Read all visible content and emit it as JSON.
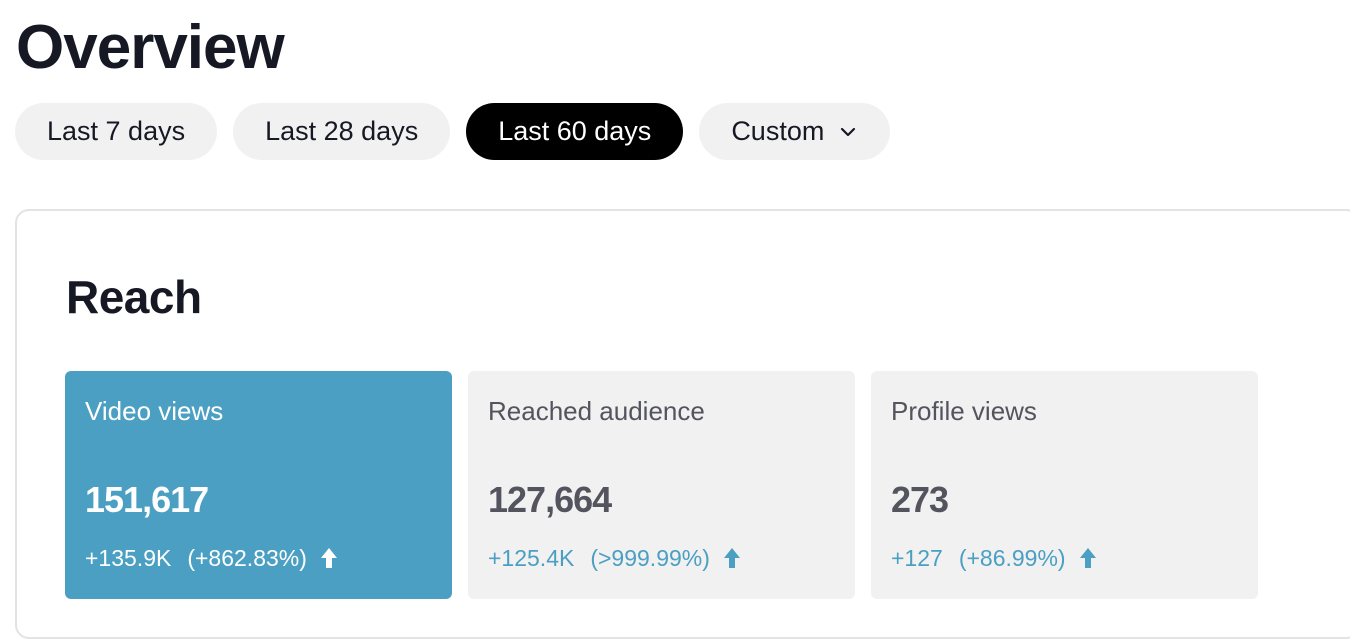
{
  "page": {
    "title": "Overview"
  },
  "date_range": {
    "tabs": [
      {
        "label": "Last 7 days",
        "active": false
      },
      {
        "label": "Last 28 days",
        "active": false
      },
      {
        "label": "Last 60 days",
        "active": true
      },
      {
        "label": "Custom",
        "active": false,
        "icon": "chevron-down-icon"
      }
    ]
  },
  "reach": {
    "title": "Reach",
    "metrics": [
      {
        "label": "Video views",
        "value": "151,617",
        "change": "+135.9K",
        "change_pct": "(+862.83%)",
        "trend": "up",
        "selected": true
      },
      {
        "label": "Reached audience",
        "value": "127,664",
        "change": "+125.4K",
        "change_pct": "(>999.99%)",
        "trend": "up",
        "selected": false
      },
      {
        "label": "Profile views",
        "value": "273",
        "change": "+127",
        "change_pct": "(+86.99%)",
        "trend": "up",
        "selected": false
      }
    ]
  },
  "colors": {
    "accent": "#4a9fc2",
    "active_tab": "#000000",
    "tab_bg": "#f1f1f2",
    "text": "#161823",
    "muted_text": "#54545e"
  }
}
